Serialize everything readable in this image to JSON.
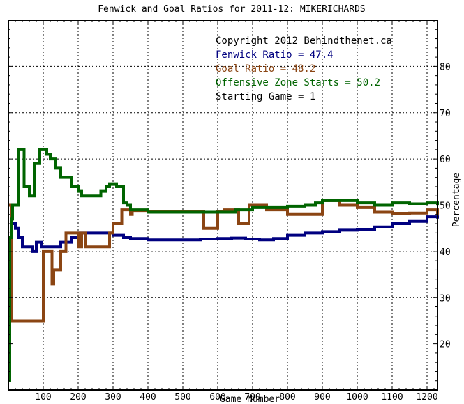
{
  "chart_data": {
    "type": "line",
    "title": "Fenwick and Goal Ratios for 2011-12: MIKERICHARDS",
    "xlabel": "Game Number",
    "ylabel": "Percentage",
    "xlim": [
      0,
      1230
    ],
    "ylim": [
      10,
      90
    ],
    "xticks": [
      100,
      200,
      300,
      400,
      500,
      600,
      700,
      800,
      900,
      1000,
      1100,
      1200
    ],
    "yticks": [
      20,
      30,
      40,
      50,
      60,
      70,
      80
    ],
    "xgrid": [
      100,
      200,
      300,
      400,
      500,
      600,
      700,
      800,
      900,
      1000,
      1100,
      1200
    ],
    "ygrid": [
      30,
      40,
      50,
      60,
      70,
      80
    ],
    "grid": true,
    "legend_position": "top-right",
    "annotations": [
      {
        "text": "Copyright 2012 Behindthenet.ca",
        "color": "#000000"
      },
      {
        "text": "Fenwick Ratio = 47.4",
        "color": "#000080"
      },
      {
        "text": "Goal Ratio = 48.2",
        "color": "#8B4513"
      },
      {
        "text": "Offensive Zone Starts = 50.2",
        "color": "#006400"
      },
      {
        "text": "Starting Game = 1",
        "color": "#000000"
      }
    ],
    "series": [
      {
        "name": "Fenwick Ratio",
        "color": "#000080",
        "points": [
          [
            5,
            38
          ],
          [
            8,
            46
          ],
          [
            15,
            46
          ],
          [
            20,
            45
          ],
          [
            30,
            43
          ],
          [
            40,
            41
          ],
          [
            55,
            41
          ],
          [
            70,
            40
          ],
          [
            80,
            42
          ],
          [
            95,
            41
          ],
          [
            110,
            41
          ],
          [
            130,
            41
          ],
          [
            150,
            42
          ],
          [
            180,
            43
          ],
          [
            200,
            44
          ],
          [
            230,
            44
          ],
          [
            260,
            44
          ],
          [
            280,
            44
          ],
          [
            300,
            43.5
          ],
          [
            330,
            43
          ],
          [
            350,
            42.8
          ],
          [
            400,
            42.5
          ],
          [
            450,
            42.5
          ],
          [
            500,
            42.5
          ],
          [
            550,
            42.7
          ],
          [
            600,
            42.8
          ],
          [
            640,
            42.9
          ],
          [
            680,
            42.7
          ],
          [
            720,
            42.5
          ],
          [
            760,
            42.8
          ],
          [
            800,
            43.5
          ],
          [
            850,
            44
          ],
          [
            900,
            44.3
          ],
          [
            950,
            44.6
          ],
          [
            1000,
            44.8
          ],
          [
            1050,
            45.3
          ],
          [
            1100,
            46
          ],
          [
            1150,
            46.5
          ],
          [
            1200,
            47.5
          ],
          [
            1230,
            47.4
          ]
        ]
      },
      {
        "name": "Goal Ratio",
        "color": "#8B4513",
        "points": [
          [
            5,
            50
          ],
          [
            10,
            25
          ],
          [
            20,
            25
          ],
          [
            45,
            25
          ],
          [
            95,
            25
          ],
          [
            100,
            40
          ],
          [
            120,
            40
          ],
          [
            125,
            33
          ],
          [
            130,
            36
          ],
          [
            145,
            36
          ],
          [
            150,
            40
          ],
          [
            165,
            44
          ],
          [
            190,
            44
          ],
          [
            200,
            41
          ],
          [
            210,
            44
          ],
          [
            220,
            41
          ],
          [
            240,
            41
          ],
          [
            270,
            41
          ],
          [
            290,
            44
          ],
          [
            300,
            46
          ],
          [
            320,
            46
          ],
          [
            325,
            49
          ],
          [
            340,
            49
          ],
          [
            350,
            48
          ],
          [
            355,
            48.7
          ],
          [
            400,
            48.7
          ],
          [
            450,
            48.7
          ],
          [
            500,
            48.7
          ],
          [
            510,
            48.7
          ],
          [
            540,
            48.7
          ],
          [
            560,
            45
          ],
          [
            580,
            45
          ],
          [
            590,
            45
          ],
          [
            600,
            48.7
          ],
          [
            620,
            49
          ],
          [
            650,
            49
          ],
          [
            660,
            46
          ],
          [
            680,
            46
          ],
          [
            690,
            50
          ],
          [
            720,
            50
          ],
          [
            740,
            49
          ],
          [
            780,
            49
          ],
          [
            800,
            48
          ],
          [
            840,
            48
          ],
          [
            870,
            48
          ],
          [
            900,
            51
          ],
          [
            950,
            50
          ],
          [
            1000,
            49.5
          ],
          [
            1050,
            48.5
          ],
          [
            1100,
            48.2
          ],
          [
            1150,
            48.3
          ],
          [
            1200,
            49
          ],
          [
            1230,
            48.2
          ]
        ]
      },
      {
        "name": "Offensive Zone Starts",
        "color": "#006400",
        "points": [
          [
            3,
            12
          ],
          [
            4,
            43
          ],
          [
            8,
            47
          ],
          [
            12,
            50
          ],
          [
            20,
            50
          ],
          [
            30,
            62
          ],
          [
            40,
            62
          ],
          [
            45,
            54
          ],
          [
            55,
            54
          ],
          [
            60,
            52
          ],
          [
            70,
            52
          ],
          [
            75,
            59
          ],
          [
            85,
            59
          ],
          [
            90,
            62
          ],
          [
            100,
            62
          ],
          [
            110,
            61
          ],
          [
            120,
            60
          ],
          [
            135,
            58
          ],
          [
            150,
            56
          ],
          [
            165,
            56
          ],
          [
            180,
            54
          ],
          [
            200,
            53
          ],
          [
            210,
            52
          ],
          [
            230,
            52
          ],
          [
            250,
            52
          ],
          [
            265,
            53
          ],
          [
            280,
            54
          ],
          [
            290,
            54.5
          ],
          [
            310,
            54
          ],
          [
            330,
            50.5
          ],
          [
            340,
            50
          ],
          [
            350,
            49
          ],
          [
            400,
            48.5
          ],
          [
            450,
            48.5
          ],
          [
            500,
            48.5
          ],
          [
            550,
            48.5
          ],
          [
            600,
            48.5
          ],
          [
            650,
            49
          ],
          [
            700,
            49.5
          ],
          [
            750,
            49.5
          ],
          [
            800,
            49.8
          ],
          [
            850,
            50
          ],
          [
            880,
            50.5
          ],
          [
            900,
            51
          ],
          [
            950,
            51
          ],
          [
            1000,
            50.5
          ],
          [
            1050,
            50
          ],
          [
            1100,
            50.5
          ],
          [
            1150,
            50.3
          ],
          [
            1200,
            50.5
          ],
          [
            1230,
            50.2
          ]
        ]
      }
    ]
  }
}
